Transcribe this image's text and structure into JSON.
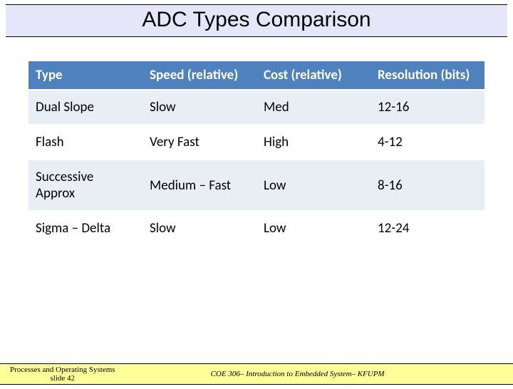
{
  "title": "ADC Types Comparison",
  "table": {
    "columns": [
      "Type",
      "Speed (relative)",
      "Cost (relative)",
      "Resolution (bits)"
    ],
    "rows": [
      [
        "Dual Slope",
        "Slow",
        "Med",
        "12-16"
      ],
      [
        "Flash",
        "Very Fast",
        "High",
        "4-12"
      ],
      [
        "Successive Approx",
        "Medium – Fast",
        "Low",
        "8-16"
      ],
      [
        "Sigma – Delta",
        "Slow",
        "Low",
        "12-24"
      ]
    ],
    "header_bg": "#4f81bd",
    "header_fg": "#ffffff",
    "row_odd_bg": "#e9edf4",
    "row_even_bg": "#ffffff",
    "font_size": 19
  },
  "footer": {
    "left_line1": "Processes and Operating Systems",
    "left_line2": "slide 42",
    "right": "COE 306– Introduction to Embedded System– KFUPM"
  },
  "colors": {
    "title_bg": "#e6e6fa",
    "footer_bg": "#ffff99",
    "page_bg": "#ffffff"
  }
}
